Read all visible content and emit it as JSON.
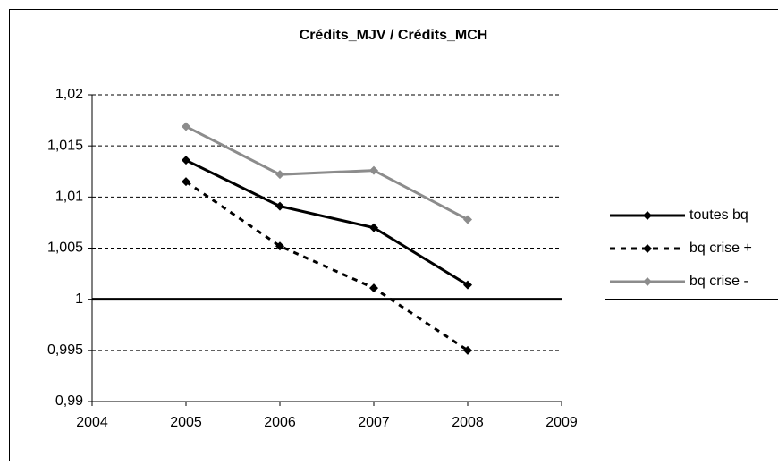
{
  "chart_data": {
    "type": "line",
    "title": "Crédits_MJV / Crédits_MCH",
    "x": [
      2005,
      2006,
      2007,
      2008
    ],
    "series": [
      {
        "name": "toutes bq",
        "color": "#000000",
        "line_style": "solid",
        "values": [
          1.0136,
          1.0091,
          1.007,
          1.0014
        ]
      },
      {
        "name": "bq crise +",
        "color": "#000000",
        "line_style": "dashed",
        "values": [
          1.0115,
          1.0052,
          1.0011,
          0.995
        ]
      },
      {
        "name": "bq crise -",
        "color": "#8c8c8c",
        "line_style": "solid",
        "values": [
          1.0169,
          1.0122,
          1.0126,
          1.0078
        ]
      }
    ],
    "xlim": [
      2004,
      2009
    ],
    "xticks": [
      2004,
      2005,
      2006,
      2007,
      2008,
      2009
    ],
    "ylim": [
      0.99,
      1.02
    ],
    "yticks": [
      {
        "value": 0.99,
        "label": "0,99"
      },
      {
        "value": 0.995,
        "label": "0,995"
      },
      1,
      {
        "value": 1.005,
        "label": "1,005"
      },
      {
        "value": 1.01,
        "label": "1,01"
      },
      {
        "value": 1.015,
        "label": "1,015"
      },
      {
        "value": 1.02,
        "label": "1,02"
      }
    ],
    "reference_line": 1,
    "grid": true,
    "grid_style": "dashed",
    "legend": "right"
  }
}
